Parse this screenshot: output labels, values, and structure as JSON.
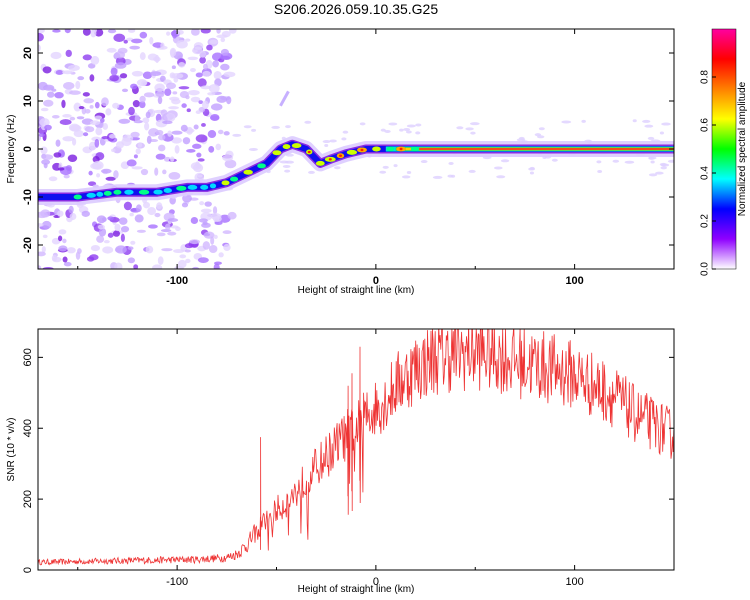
{
  "title": "S206.2026.059.10.35.G25",
  "chart_data": [
    {
      "type": "heatmap",
      "name": "spectrogram",
      "xlabel": "Height of straight line (km)",
      "ylabel": "Frequency (Hz)",
      "xlim": [
        -170,
        150
      ],
      "ylim": [
        -25,
        25
      ],
      "xticks": [
        -100,
        0,
        100
      ],
      "yticks": [
        20,
        10,
        0,
        -10,
        -20
      ],
      "colorbar": {
        "label": "Normalized spectral amplitude",
        "range": [
          0.0,
          1.0
        ],
        "ticks": [
          "0.0",
          "0.2",
          "0.4",
          "0.6",
          "0.8"
        ],
        "colormap": [
          "#ffffff",
          "#8f00ff",
          "#0000ff",
          "#00ffff",
          "#00ff00",
          "#ffff00",
          "#ff8000",
          "#ff0000",
          "#ff00a0"
        ]
      },
      "ridge": [
        {
          "x": -170,
          "y": -10
        },
        {
          "x": -150,
          "y": -10
        },
        {
          "x": -130,
          "y": -9
        },
        {
          "x": -110,
          "y": -9
        },
        {
          "x": -95,
          "y": -8
        },
        {
          "x": -85,
          "y": -8
        },
        {
          "x": -75,
          "y": -7
        },
        {
          "x": -65,
          "y": -5
        },
        {
          "x": -55,
          "y": -3
        },
        {
          "x": -48,
          "y": 0
        },
        {
          "x": -42,
          "y": 1
        },
        {
          "x": -35,
          "y": 0
        },
        {
          "x": -28,
          "y": -3
        },
        {
          "x": -22,
          "y": -2
        },
        {
          "x": -15,
          "y": -1
        },
        {
          "x": -5,
          "y": 0
        },
        {
          "x": 10,
          "y": 0
        },
        {
          "x": 50,
          "y": 0
        },
        {
          "x": 100,
          "y": 0
        },
        {
          "x": 150,
          "y": 0
        }
      ]
    },
    {
      "type": "line",
      "name": "snr",
      "xlabel": "Height of straight line (km)",
      "ylabel": "SNR (10 * v/v)",
      "xlim": [
        -170,
        150
      ],
      "ylim": [
        0,
        680
      ],
      "xticks": [
        -100,
        0,
        100
      ],
      "yticks": [
        0,
        200,
        400,
        600
      ],
      "color": "#ee3333",
      "envelope_x": [
        -170,
        -140,
        -110,
        -90,
        -75,
        -70,
        -65,
        -60,
        -55,
        -50,
        -45,
        -40,
        -35,
        -30,
        -25,
        -20,
        -15,
        -10,
        -5,
        0,
        5,
        10,
        20,
        30,
        40,
        50,
        60,
        70,
        80,
        90,
        100,
        110,
        120,
        130,
        140,
        150
      ],
      "envelope_y": [
        22,
        25,
        28,
        30,
        35,
        45,
        70,
        110,
        140,
        170,
        190,
        220,
        260,
        290,
        320,
        350,
        380,
        400,
        430,
        460,
        480,
        520,
        570,
        600,
        610,
        615,
        610,
        590,
        580,
        565,
        550,
        520,
        490,
        440,
        410,
        380
      ],
      "spikes": [
        {
          "x": -58,
          "y": 375
        },
        {
          "x": -8,
          "y": 630
        },
        {
          "x": -12,
          "y": 555
        },
        {
          "x": -14,
          "y": 520
        }
      ]
    }
  ]
}
